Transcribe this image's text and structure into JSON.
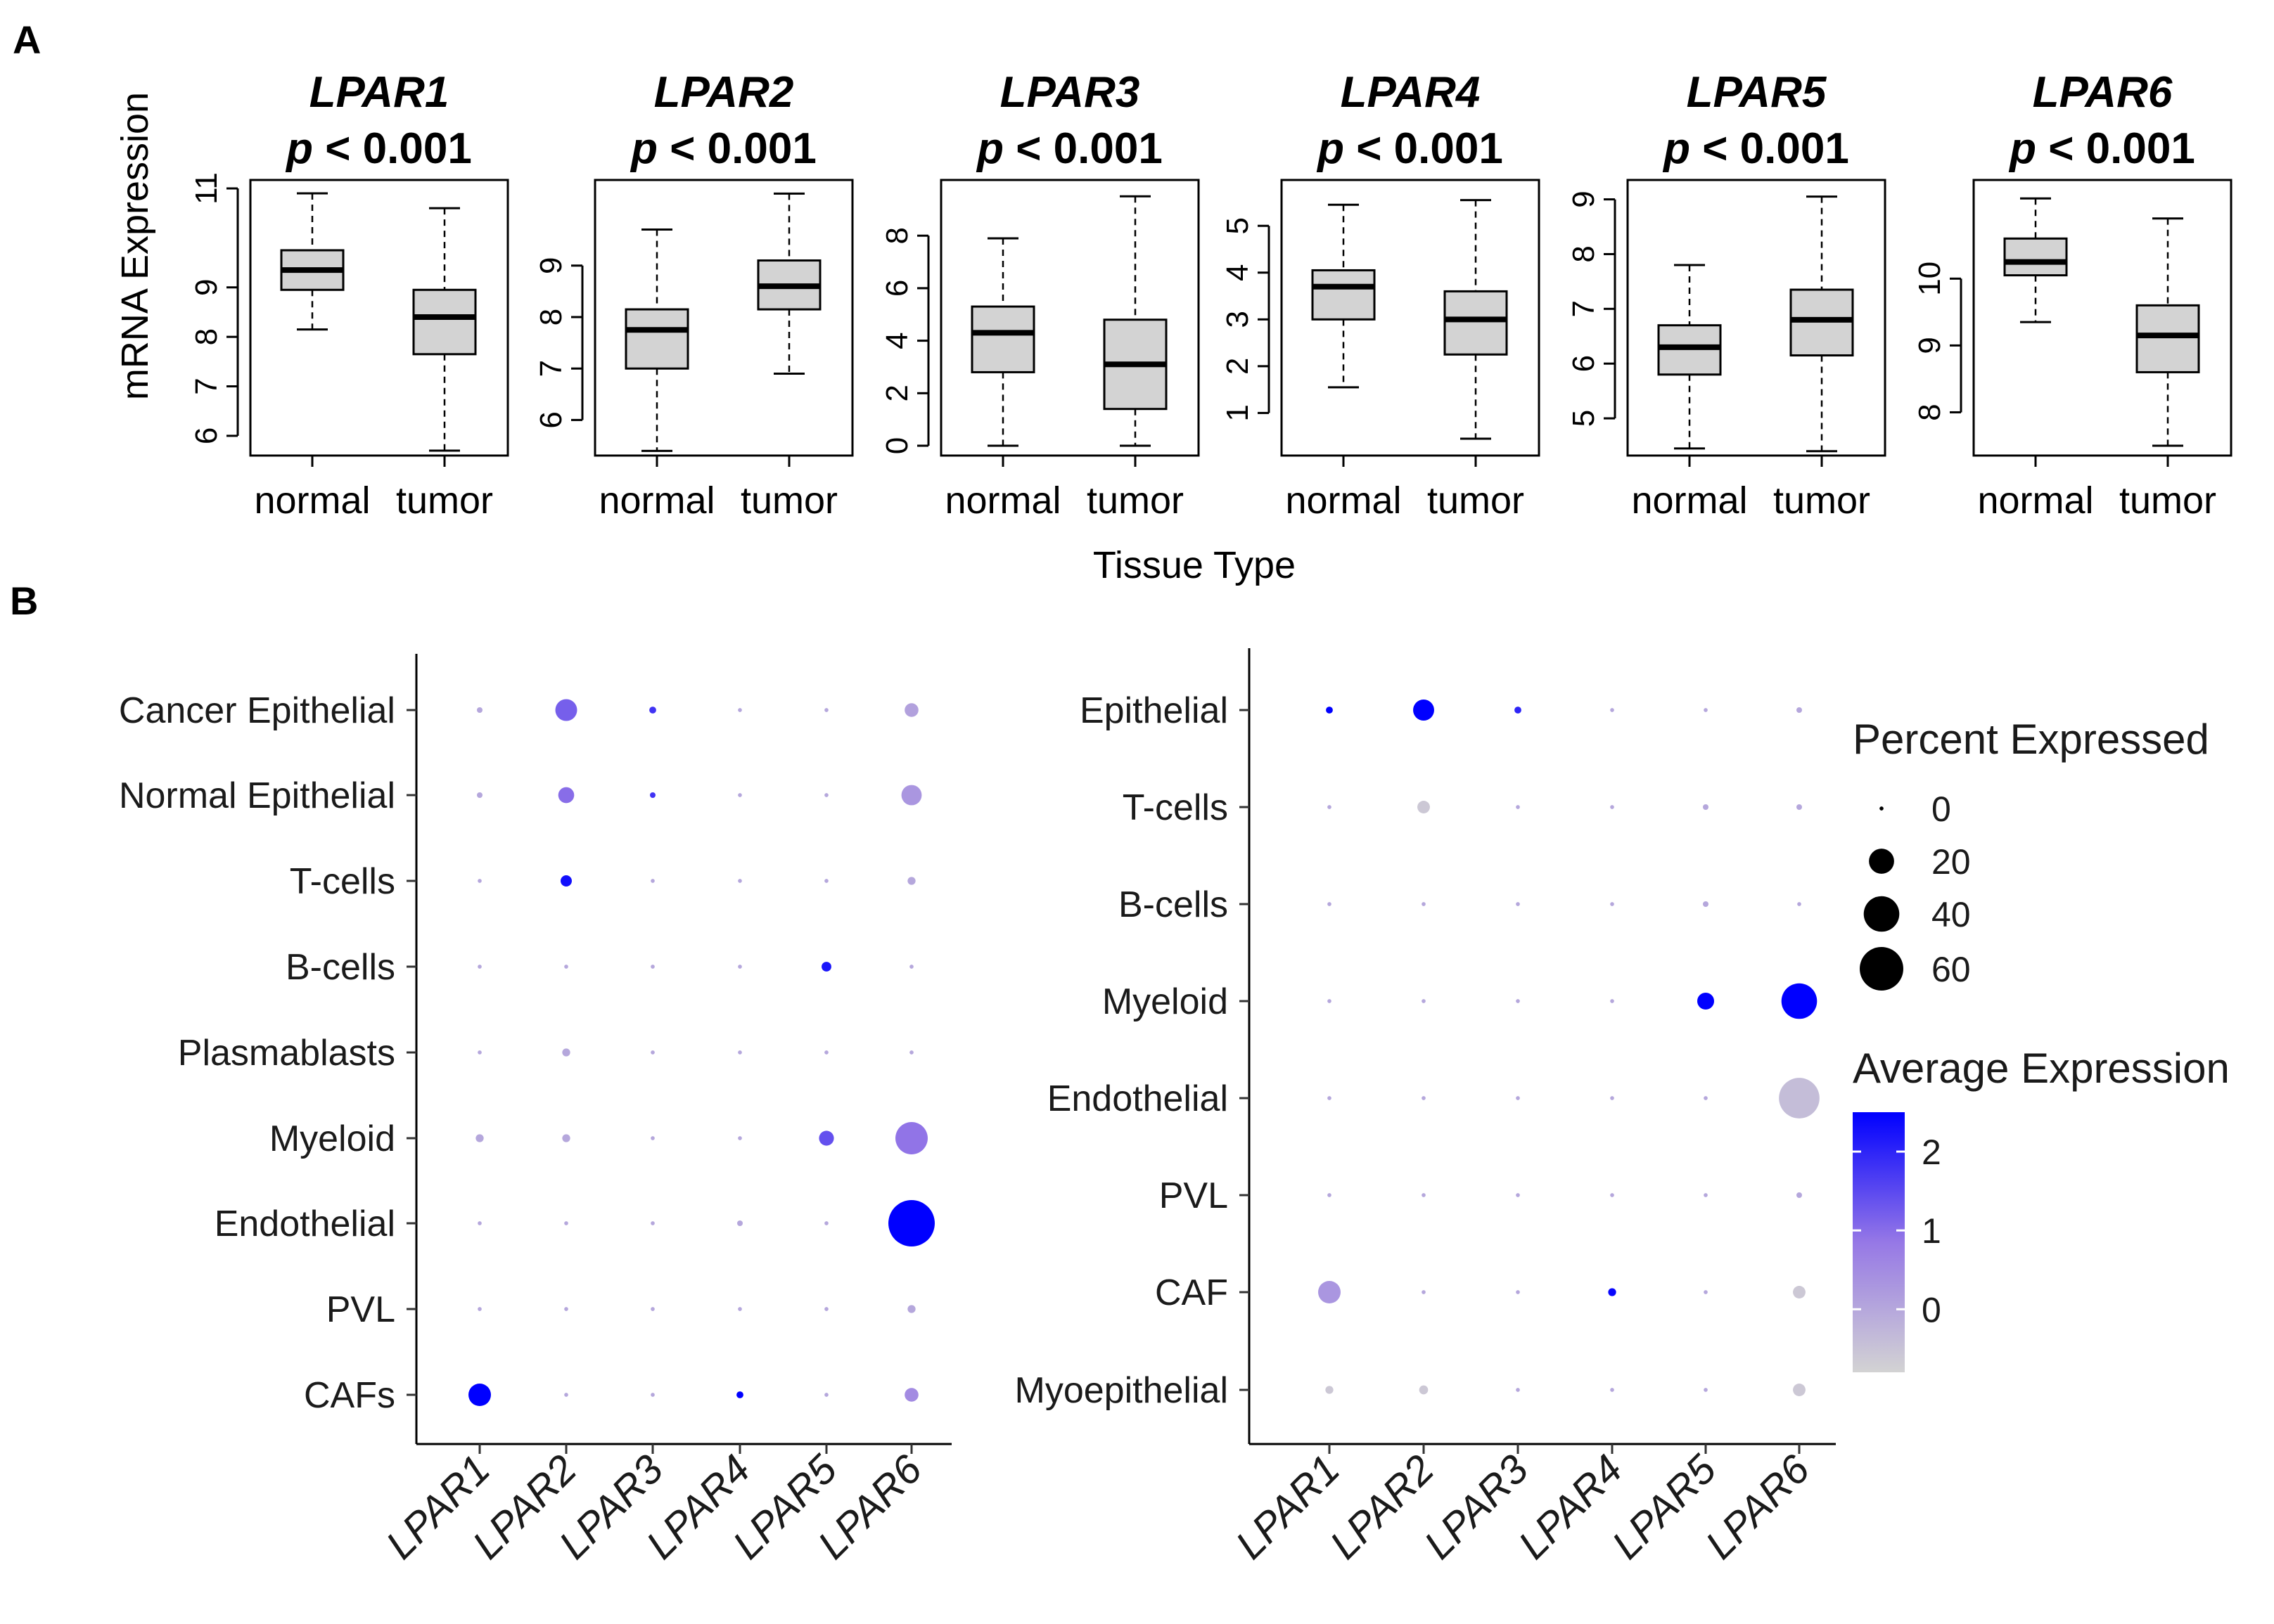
{
  "panel_a_label": "A",
  "panel_b_label": "B",
  "p_prefix": "p",
  "p_suffix": "< 0.001",
  "tissue_axis_label": "Tissue Type",
  "mrna_axis_label": "mRNA Expression",
  "chart_data": [
    {
      "type": "box",
      "title": "LPAR1",
      "subtitle": "p < 0.001",
      "ylabel": "mRNA Expression",
      "xlabel": "Tissue Type",
      "categories": [
        "normal",
        "tumor"
      ],
      "ylim": [
        5.8,
        11.0
      ],
      "yticks": [
        6,
        7,
        8,
        9,
        11
      ],
      "boxes": [
        {
          "group": "normal",
          "whisker_low": 8.15,
          "q1": 8.95,
          "median": 9.35,
          "q3": 9.75,
          "whisker_high": 10.9
        },
        {
          "group": "tumor",
          "whisker_low": 5.7,
          "q1": 7.65,
          "median": 8.4,
          "q3": 8.95,
          "whisker_high": 10.6
        }
      ]
    },
    {
      "type": "box",
      "title": "LPAR2",
      "subtitle": "p < 0.001",
      "categories": [
        "normal",
        "tumor"
      ],
      "ylim": [
        5.5,
        10.5
      ],
      "yticks": [
        6,
        7,
        8,
        9
      ],
      "boxes": [
        {
          "group": "normal",
          "whisker_low": 5.4,
          "q1": 7.0,
          "median": 7.75,
          "q3": 8.15,
          "whisker_high": 9.7
        },
        {
          "group": "tumor",
          "whisker_low": 6.9,
          "q1": 8.15,
          "median": 8.6,
          "q3": 9.1,
          "whisker_high": 10.4
        }
      ]
    },
    {
      "type": "box",
      "title": "LPAR3",
      "subtitle": "p < 0.001",
      "categories": [
        "normal",
        "tumor"
      ],
      "ylim": [
        0,
        9.8
      ],
      "yticks": [
        0,
        2,
        4,
        6,
        8
      ],
      "boxes": [
        {
          "group": "normal",
          "whisker_low": 0,
          "q1": 2.8,
          "median": 4.3,
          "q3": 5.3,
          "whisker_high": 7.9
        },
        {
          "group": "tumor",
          "whisker_low": 0,
          "q1": 1.4,
          "median": 3.1,
          "q3": 4.8,
          "whisker_high": 9.5
        }
      ]
    },
    {
      "type": "box",
      "title": "LPAR4",
      "subtitle": "p < 0.001",
      "categories": [
        "normal",
        "tumor"
      ],
      "ylim": [
        0.3,
        5.8
      ],
      "yticks": [
        1,
        2,
        3,
        4,
        5
      ],
      "boxes": [
        {
          "group": "normal",
          "whisker_low": 1.55,
          "q1": 3.0,
          "median": 3.7,
          "q3": 4.05,
          "whisker_high": 5.45
        },
        {
          "group": "tumor",
          "whisker_low": 0.45,
          "q1": 2.25,
          "median": 3.0,
          "q3": 3.6,
          "whisker_high": 5.55
        }
      ]
    },
    {
      "type": "box",
      "title": "LPAR5",
      "subtitle": "p < 0.001",
      "categories": [
        "normal",
        "tumor"
      ],
      "ylim": [
        4.5,
        9.2
      ],
      "yticks": [
        5,
        6,
        7,
        8,
        9
      ],
      "boxes": [
        {
          "group": "normal",
          "whisker_low": 4.45,
          "q1": 5.8,
          "median": 6.3,
          "q3": 6.7,
          "whisker_high": 7.8
        },
        {
          "group": "tumor",
          "whisker_low": 4.4,
          "q1": 6.15,
          "median": 6.8,
          "q3": 7.35,
          "whisker_high": 9.05
        }
      ]
    },
    {
      "type": "box",
      "title": "LPAR6",
      "subtitle": "p < 0.001",
      "categories": [
        "normal",
        "tumor"
      ],
      "ylim": [
        7.5,
        11.35
      ],
      "yticks": [
        8,
        9,
        10
      ],
      "boxes": [
        {
          "group": "normal",
          "whisker_low": 9.35,
          "q1": 10.05,
          "median": 10.25,
          "q3": 10.6,
          "whisker_high": 11.2
        },
        {
          "group": "tumor",
          "whisker_low": 7.5,
          "q1": 8.6,
          "median": 9.15,
          "q3": 9.6,
          "whisker_high": 10.9
        }
      ]
    },
    {
      "type": "dot",
      "x_categories": [
        "LPAR1",
        "LPAR2",
        "LPAR3",
        "LPAR4",
        "LPAR5",
        "LPAR6"
      ],
      "y_categories": [
        "Cancer Epithelial",
        "Normal Epithelial",
        "T-cells",
        "B-cells",
        "Plasmablasts",
        "Myeloid",
        "Endothelial",
        "PVL",
        "CAFs"
      ],
      "pct": [
        [
          1,
          15,
          1.5,
          0.5,
          0.5,
          6
        ],
        [
          1,
          8,
          1,
          0.5,
          0.5,
          13
        ],
        [
          0.5,
          4,
          0.5,
          0.5,
          0.5,
          2
        ],
        [
          0.5,
          0.5,
          0.5,
          0.5,
          3,
          0.5
        ],
        [
          0.5,
          2,
          0.5,
          0.5,
          0.5,
          0.5
        ],
        [
          2,
          2,
          0.5,
          0.5,
          7,
          33
        ],
        [
          0.5,
          0.5,
          0.5,
          1,
          0.5,
          68
        ],
        [
          0.5,
          0.5,
          0.5,
          0.5,
          0.5,
          2
        ],
        [
          16,
          0.5,
          0.5,
          1.5,
          0.5,
          6
        ]
      ],
      "avg": [
        [
          0,
          1.2,
          1.8,
          0,
          0,
          0.1
        ],
        [
          0,
          1.0,
          1.8,
          0,
          0,
          0.3
        ],
        [
          0,
          2.3,
          0,
          0,
          0,
          0
        ],
        [
          0,
          0,
          0,
          0,
          2.2,
          0
        ],
        [
          0,
          0,
          0,
          0,
          0,
          0
        ],
        [
          0,
          0,
          0,
          0,
          1.4,
          0.9
        ],
        [
          0,
          0,
          0,
          0,
          0,
          2.5
        ],
        [
          0,
          0,
          0,
          0,
          0,
          0
        ],
        [
          2.5,
          0,
          0,
          2.5,
          0,
          0.5
        ]
      ]
    },
    {
      "type": "dot",
      "x_categories": [
        "LPAR1",
        "LPAR2",
        "LPAR3",
        "LPAR4",
        "LPAR5",
        "LPAR6"
      ],
      "y_categories": [
        "Epithelial",
        "T-cells",
        "B-cells",
        "Myeloid",
        "Endothelial",
        "PVL",
        "CAF",
        "Myoepithelial"
      ],
      "pct": [
        [
          1.5,
          14,
          1.5,
          0.5,
          0.5,
          1
        ],
        [
          0.5,
          5,
          0.5,
          0.5,
          1,
          1
        ],
        [
          0.5,
          0.5,
          0.5,
          0.5,
          1,
          0.5
        ],
        [
          0.5,
          0.5,
          0.5,
          0.5,
          9,
          40
        ],
        [
          0.5,
          0.5,
          0.5,
          0.5,
          0.5,
          52
        ],
        [
          0.5,
          0.5,
          0.5,
          0.5,
          0.5,
          1
        ],
        [
          16,
          0.5,
          0.5,
          2,
          0.5,
          5
        ],
        [
          2,
          2.5,
          0.5,
          0.5,
          0.5,
          5
        ]
      ],
      "avg": [
        [
          2.5,
          2.5,
          2.0,
          0,
          0,
          0
        ],
        [
          0,
          -0.6,
          0,
          0,
          0,
          0
        ],
        [
          0,
          0,
          0,
          0,
          0,
          0
        ],
        [
          0,
          0,
          0,
          0,
          2.5,
          2.5
        ],
        [
          0,
          0,
          0,
          0,
          0,
          -0.4
        ],
        [
          0,
          0,
          0,
          0,
          0,
          0
        ],
        [
          0.3,
          0,
          0,
          2.4,
          0,
          -0.6
        ],
        [
          -0.6,
          -0.6,
          0,
          0,
          0,
          -0.6
        ]
      ],
      "legend": {
        "size_title": "Percent Expressed",
        "size_values": [
          0,
          20,
          40,
          60
        ],
        "color_title": "Average Expression",
        "color_ticks": [
          0,
          1,
          2
        ],
        "color_range": [
          -0.8,
          2.5
        ],
        "color_low": "#d3d3d3",
        "color_high": "#0000ff",
        "position": "right"
      }
    }
  ]
}
